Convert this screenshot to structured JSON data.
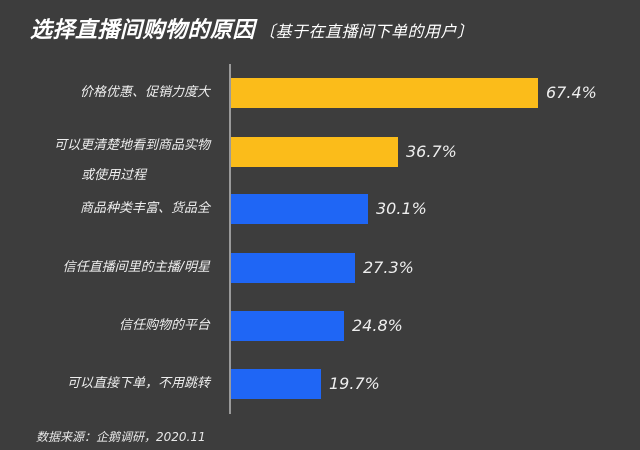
{
  "title": {
    "main": "选择直播间购物的原因",
    "sub": "〔基于在直播间下单的用户〕"
  },
  "colors": {
    "background": "#3d3d3d",
    "highlight": "#fbbc1a",
    "normal": "#1f66f5",
    "axis": "#9a9a9a"
  },
  "source": "数据来源：企鹅调研，2020.11",
  "chart_data": {
    "type": "bar",
    "orientation": "horizontal",
    "title": "选择直播间购物的原因（基于在直播间下单的用户）",
    "categories": [
      "价格优惠、促销力度大",
      "可以更清楚地看到商品实物或使用过程",
      "商品种类丰富、货品全",
      "信任直播间里的主播/明星",
      "信任购物的平台",
      "可以直接下单，不用跳转"
    ],
    "values": [
      67.4,
      36.7,
      30.1,
      27.3,
      24.8,
      19.7
    ],
    "value_labels": [
      "67.4%",
      "36.7%",
      "30.1%",
      "27.3%",
      "24.8%",
      "19.7%"
    ],
    "bar_colors": [
      "#fbbc1a",
      "#fbbc1a",
      "#1f66f5",
      "#1f66f5",
      "#1f66f5",
      "#1f66f5"
    ],
    "xlabel": "",
    "ylabel": "",
    "unit": "%",
    "grid": false,
    "legend": null,
    "source": "数据来源：企鹅调研，2020.11"
  },
  "rows": [
    {
      "label_lines": [
        "价格优惠、促销力度大"
      ],
      "value": "67.4%"
    },
    {
      "label_lines": [
        "可以更清楚地看到商品实物",
        "或使用过程"
      ],
      "value": "36.7%"
    },
    {
      "label_lines": [
        "商品种类丰富、货品全"
      ],
      "value": "30.1%"
    },
    {
      "label_lines": [
        "信任直播间里的主播/明星"
      ],
      "value": "27.3%"
    },
    {
      "label_lines": [
        "信任购物的平台"
      ],
      "value": "24.8%"
    },
    {
      "label_lines": [
        "可以直接下单，不用跳转"
      ],
      "value": "19.7%"
    }
  ]
}
